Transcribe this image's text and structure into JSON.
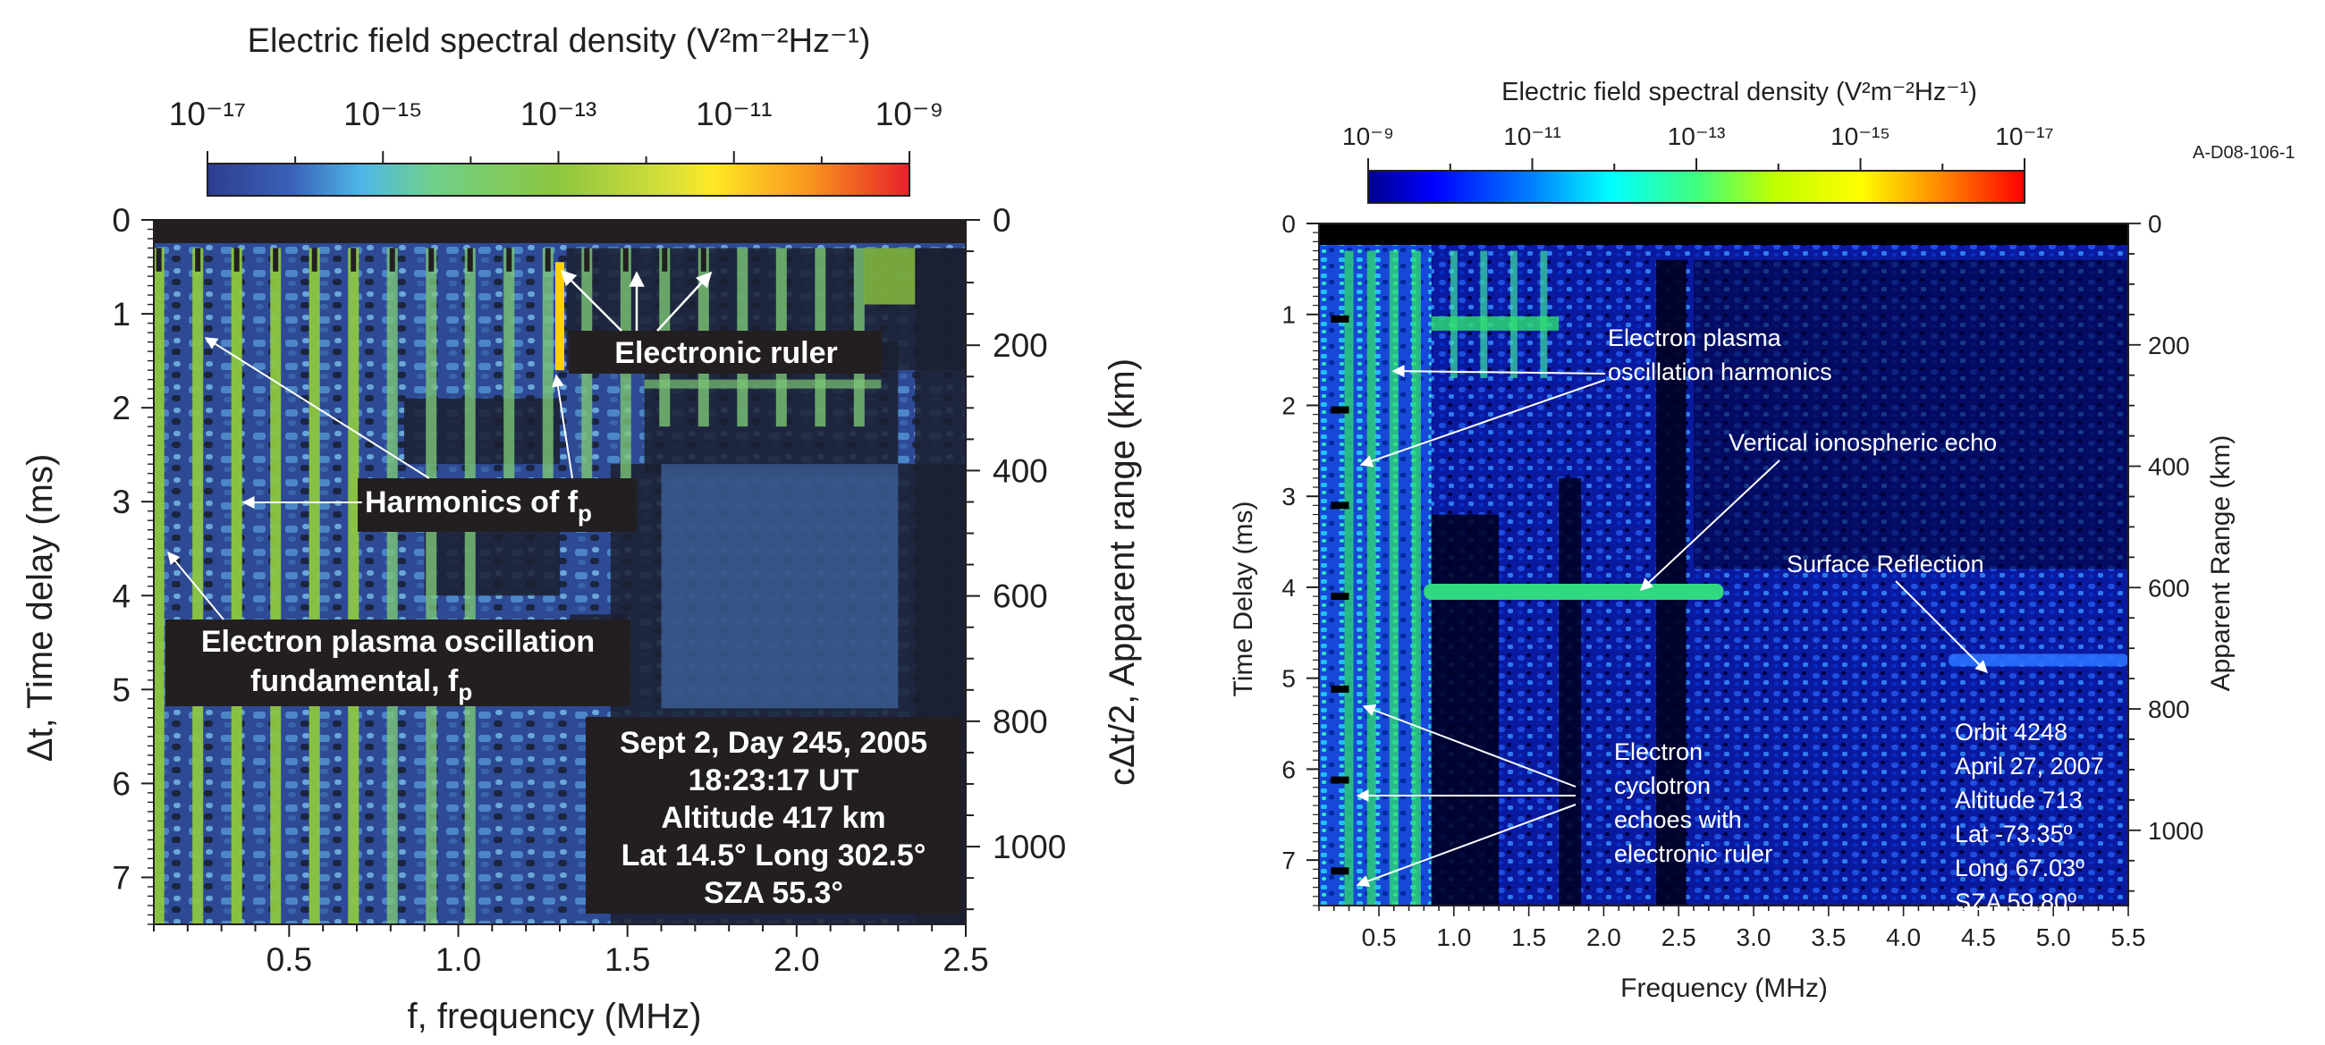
{
  "figure_code": "A-D08-106-1",
  "chart_data": [
    {
      "type": "heatmap",
      "colorbar": {
        "title": "Electric field spectral density (V²m⁻²Hz⁻¹)",
        "tick_labels": [
          "10⁻¹⁷",
          "10⁻¹⁵",
          "10⁻¹³",
          "10⁻¹¹",
          "10⁻⁹"
        ],
        "exponents": [
          -17,
          -15,
          -13,
          -11,
          -9
        ],
        "colors": [
          "#2e3d8f",
          "#3a62b8",
          "#4fb7e8",
          "#6fd08a",
          "#b8df46",
          "#ffe825",
          "#f7941d",
          "#e8202a"
        ]
      },
      "xlabel": "f, frequency (MHz)",
      "ylabel": "Δt, Time delay (ms)",
      "y2label": "cΔt/2, Apparent range (km)",
      "xlim": [
        0.1,
        2.5
      ],
      "ylim": [
        0,
        7.5
      ],
      "y2lim": [
        0,
        1124
      ],
      "x_ticks": [
        0.5,
        1.0,
        1.5,
        2.0,
        2.5
      ],
      "x_tick_labels": [
        "0.5",
        "1.0",
        "1.5",
        "2.0",
        "2.5"
      ],
      "y_ticks": [
        0,
        1,
        2,
        3,
        4,
        5,
        6,
        7
      ],
      "y_tick_labels": [
        "0",
        "1",
        "2",
        "3",
        "4",
        "5",
        "6",
        "7"
      ],
      "y2_ticks": [
        0,
        200,
        400,
        600,
        800,
        1000
      ],
      "y2_tick_labels": [
        "0",
        "200",
        "400",
        "600",
        "800",
        "1000"
      ],
      "harmonic_frequencies_mhz": [
        0.115,
        0.23,
        0.345,
        0.46,
        0.575,
        0.69,
        0.805,
        0.92,
        1.035,
        1.15,
        1.265,
        1.38,
        1.495,
        1.61,
        1.725,
        1.84,
        1.955,
        2.07,
        2.185
      ],
      "ruler_frequencies_mhz": [
        0.115,
        0.23,
        0.345,
        0.46,
        0.575,
        0.69,
        0.805,
        0.92,
        1.035,
        1.15,
        1.265,
        1.38,
        1.495,
        1.61,
        1.725
      ],
      "annotations": {
        "ruler": "Electronic ruler",
        "harmonics": "Harmonics of f",
        "harmonics_sub": "p",
        "fund_line1": "Electron plasma oscillation",
        "fund_line2": "fundamental, f",
        "fund_sub": "p",
        "info": [
          "Sept 2, Day 245, 2005",
          "18:23:17 UT",
          "Altitude 417 km",
          "Lat 14.5°  Long 302.5°",
          "SZA 55.3°"
        ]
      }
    },
    {
      "type": "heatmap",
      "colorbar": {
        "title": "Electric field spectral density (V²m⁻²Hz⁻¹)",
        "tick_labels": [
          "10⁻⁹",
          "10⁻¹¹",
          "10⁻¹³",
          "10⁻¹⁵",
          "10⁻¹⁷"
        ],
        "exponents": [
          -9,
          -11,
          -13,
          -15,
          -17
        ],
        "colors": [
          "#00008f",
          "#0000ff",
          "#0080ff",
          "#00ffff",
          "#40ff80",
          "#c0ff00",
          "#ffff00",
          "#ff8000",
          "#ff0000"
        ]
      },
      "xlabel": "Frequency (MHz)",
      "ylabel": "Time Delay (ms)",
      "y2label": "Apparent Range (km)",
      "xlim": [
        0.1,
        5.5
      ],
      "ylim": [
        0,
        7.5
      ],
      "y2lim": [
        0,
        1124
      ],
      "x_ticks": [
        0.5,
        1.0,
        1.5,
        2.0,
        2.5,
        3.0,
        3.5,
        4.0,
        4.5,
        5.0,
        5.5
      ],
      "x_tick_labels": [
        "0.5",
        "1.0",
        "1.5",
        "2.0",
        "2.5",
        "3.0",
        "3.5",
        "4.0",
        "4.5",
        "5.0",
        "5.5"
      ],
      "y_ticks": [
        0,
        1,
        2,
        3,
        4,
        5,
        6,
        7
      ],
      "y_tick_labels": [
        "0",
        "1",
        "2",
        "3",
        "4",
        "5",
        "6",
        "7"
      ],
      "y2_ticks": [
        0,
        200,
        400,
        600,
        800,
        1000
      ],
      "y2_tick_labels": [
        "0",
        "200",
        "400",
        "600",
        "800",
        "1000"
      ],
      "ruler_delays_ms": [
        1.05,
        2.05,
        3.1,
        4.1,
        5.12,
        6.12,
        7.12
      ],
      "ionospheric_echo": {
        "delay_ms": 4.05,
        "f_start_mhz": 0.8,
        "f_end_mhz": 2.8
      },
      "surface_reflection": {
        "delay_ms": 4.8,
        "f_start_mhz": 4.3,
        "f_end_mhz": 5.5
      },
      "annotations": {
        "harmonics_line1": "Electron plasma",
        "harmonics_line2": "oscillation harmonics",
        "echo": "Vertical ionospheric echo",
        "surface": "Surface Reflection",
        "cyclotron": [
          "Electron",
          "cyclotron",
          "echoes with",
          "electronic ruler"
        ],
        "info": [
          "Orbit 4248",
          "April 27, 2007",
          "Altitude 713",
          "Lat -73.35º",
          "Long 67.03º",
          "SZA 59.80º"
        ]
      }
    }
  ]
}
